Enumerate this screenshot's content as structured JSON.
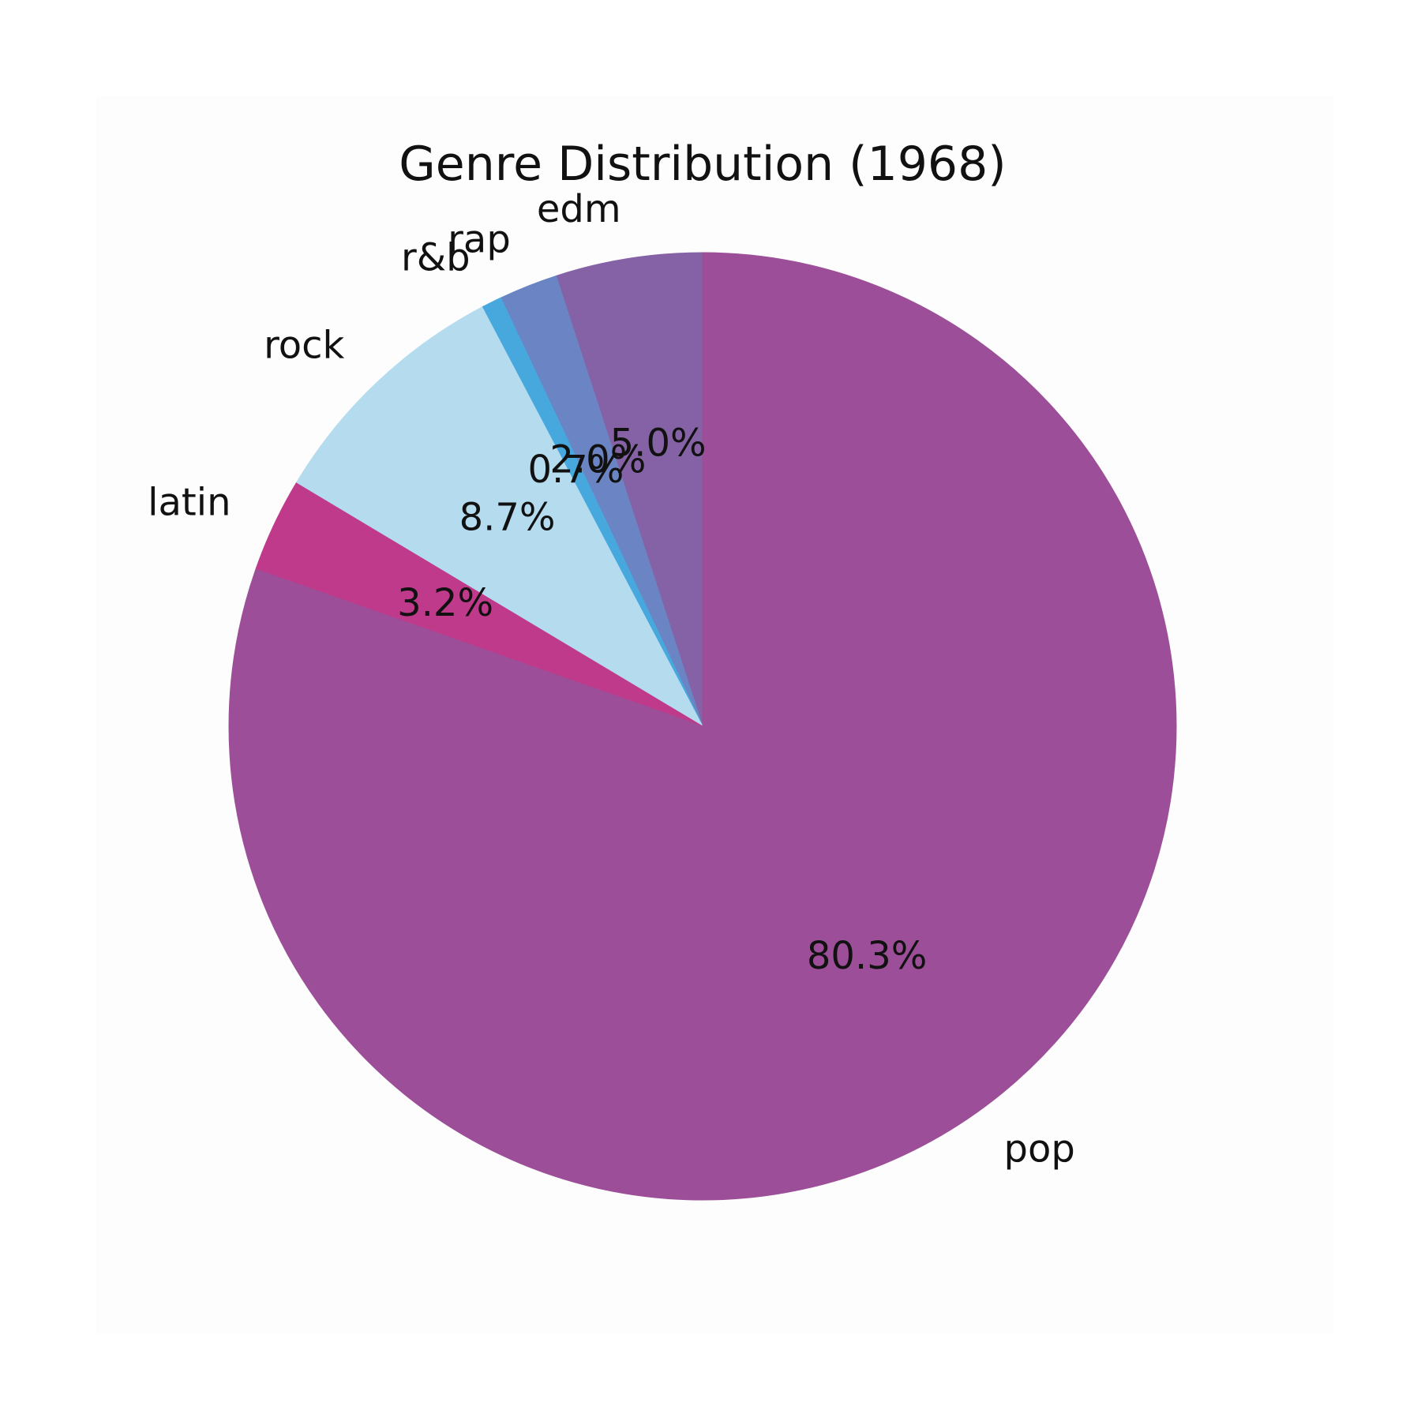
{
  "chart_data": {
    "type": "pie",
    "title": "Genre Distribution (1968)",
    "start_angle_deg": 90,
    "direction": "counterclockwise",
    "slices": [
      {
        "label": "edm",
        "value": 5.0,
        "pct_label": "5.0%",
        "color": "#8562A5"
      },
      {
        "label": "rap",
        "value": 2.0,
        "pct_label": "2.0%",
        "color": "#6B85C4"
      },
      {
        "label": "r&b",
        "value": 0.7,
        "pct_label": "0.7%",
        "color": "#47A8DE"
      },
      {
        "label": "rock",
        "value": 8.7,
        "pct_label": "8.7%",
        "color": "#B5DBEF"
      },
      {
        "label": "latin",
        "value": 3.2,
        "pct_label": "3.2%",
        "color": "#C03A8C"
      },
      {
        "label": "pop",
        "value": 80.3,
        "pct_label": "80.3%",
        "color": "#9C4F98"
      }
    ]
  }
}
